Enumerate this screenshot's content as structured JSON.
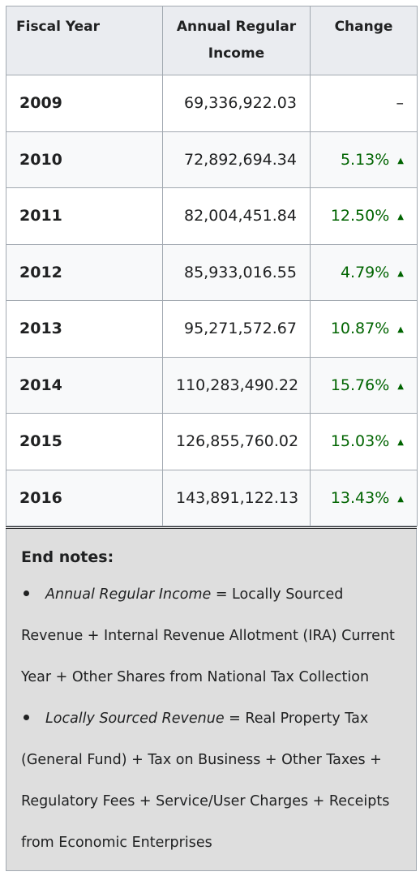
{
  "table": {
    "headers": {
      "year": "Fiscal Year",
      "income": "Annual Regular Income",
      "change": "Change"
    },
    "rows": [
      {
        "year": "2009",
        "amount": "69,336,922.03",
        "change": "–",
        "trend": "none"
      },
      {
        "year": "2010",
        "amount": "72,892,694.34",
        "change": "5.13%",
        "trend": "up"
      },
      {
        "year": "2011",
        "amount": "82,004,451.84",
        "change": "12.50%",
        "trend": "up"
      },
      {
        "year": "2012",
        "amount": "85,933,016.55",
        "change": "4.79%",
        "trend": "up"
      },
      {
        "year": "2013",
        "amount": "95,271,572.67",
        "change": "10.87%",
        "trend": "up"
      },
      {
        "year": "2014",
        "amount": "110,283,490.22",
        "change": "15.76%",
        "trend": "up"
      },
      {
        "year": "2015",
        "amount": "126,855,760.02",
        "change": "15.03%",
        "trend": "up"
      },
      {
        "year": "2016",
        "amount": "143,891,122.13",
        "change": "13.43%",
        "trend": "up"
      }
    ],
    "increase_glyph": "▲",
    "increase_color": "#006400"
  },
  "notes": {
    "title": "End notes:",
    "items": [
      {
        "term": "Annual Regular Income",
        "definition": " = Locally Sourced Revenue + Internal Revenue Allotment (IRA) Current Year + Other Shares from National Tax Collection"
      },
      {
        "term": "Locally Sourced Revenue",
        "definition": " = Real Property Tax (General Fund) + Tax on Business + Other Taxes + Regulatory Fees + Service/User Charges + Receipts from Economic Enterprises"
      }
    ]
  }
}
